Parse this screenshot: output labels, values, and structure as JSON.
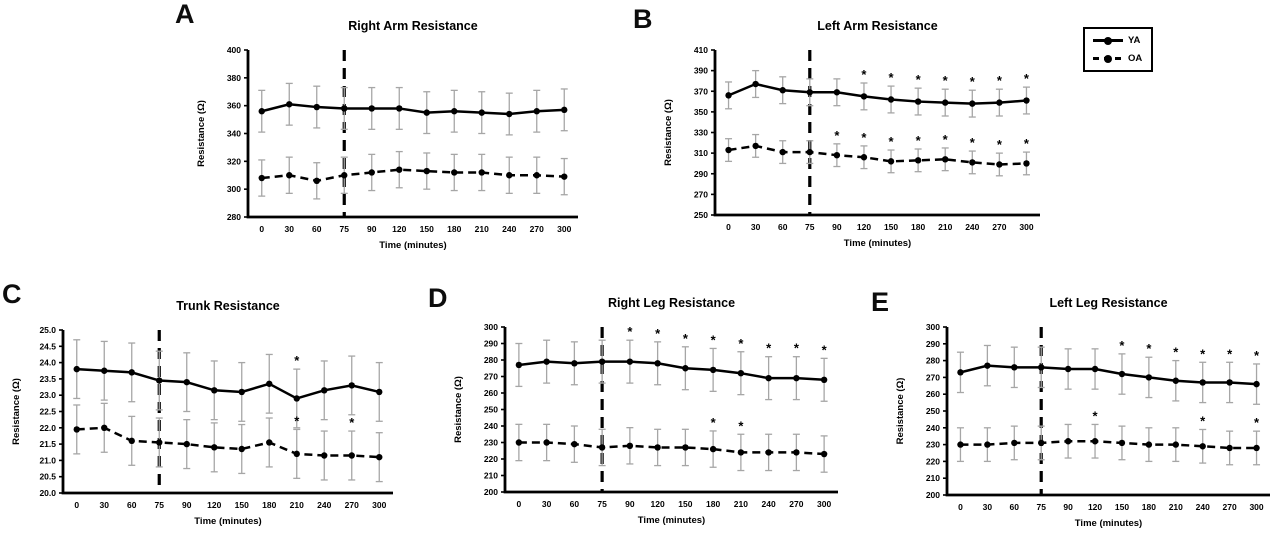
{
  "figure": {
    "background": "#ffffff"
  },
  "colors": {
    "foreground": "#000000",
    "error_bars": "#a6a6a6"
  },
  "legend": {
    "items": [
      {
        "label": "YA",
        "style": "solid"
      },
      {
        "label": "OA",
        "style": "dashed"
      }
    ]
  },
  "chart_data": [
    {
      "panel": "A",
      "type": "line",
      "title": "Right Arm Resistance",
      "xlabel": "Time (minutes)",
      "ylabel": "Resistance (Ω)",
      "categories": [
        "0",
        "30",
        "60",
        "75",
        "90",
        "120",
        "150",
        "180",
        "210",
        "240",
        "270",
        "300"
      ],
      "ylim": [
        280,
        400
      ],
      "ytick_step": 20,
      "ydecimals": 0,
      "grid": false,
      "vline_at": "75",
      "series": [
        {
          "name": "YA",
          "style": "solid",
          "values": [
            356,
            361,
            359,
            358,
            358,
            358,
            355,
            356,
            355,
            354,
            356,
            357
          ],
          "err": 15,
          "sig_at": []
        },
        {
          "name": "OA",
          "style": "dashed",
          "values": [
            308,
            310,
            306,
            310,
            312,
            314,
            313,
            312,
            312,
            310,
            310,
            309
          ],
          "err": 13,
          "sig_at": []
        }
      ]
    },
    {
      "panel": "B",
      "type": "line",
      "title": "Left Arm Resistance",
      "xlabel": "Time (minutes)",
      "ylabel": "Resistance (Ω)",
      "categories": [
        "0",
        "30",
        "60",
        "75",
        "90",
        "120",
        "150",
        "180",
        "210",
        "240",
        "270",
        "300"
      ],
      "ylim": [
        250,
        410
      ],
      "ytick_step": 20,
      "ydecimals": 0,
      "grid": false,
      "vline_at": "75",
      "series": [
        {
          "name": "YA",
          "style": "solid",
          "values": [
            366,
            377,
            371,
            369,
            369,
            365,
            362,
            360,
            359,
            358,
            359,
            361
          ],
          "err": 13,
          "sig_at": [
            "120",
            "150",
            "180",
            "210",
            "240",
            "270",
            "300"
          ]
        },
        {
          "name": "OA",
          "style": "dashed",
          "values": [
            313,
            317,
            311,
            311,
            308,
            306,
            302,
            303,
            304,
            301,
            299,
            300
          ],
          "err": 11,
          "sig_at": [
            "90",
            "120",
            "150",
            "180",
            "210",
            "240",
            "270",
            "300"
          ]
        }
      ]
    },
    {
      "panel": "C",
      "type": "line",
      "title": "Trunk Resistance",
      "xlabel": "Time (minutes)",
      "ylabel": "Resistance (Ω)",
      "categories": [
        "0",
        "30",
        "60",
        "75",
        "90",
        "120",
        "150",
        "180",
        "210",
        "240",
        "270",
        "300"
      ],
      "ylim": [
        20.0,
        25.0
      ],
      "ytick_step": 0.5,
      "ydecimals": 1,
      "grid": false,
      "vline_at": "75",
      "series": [
        {
          "name": "YA",
          "style": "solid",
          "values": [
            23.8,
            23.75,
            23.7,
            23.45,
            23.4,
            23.15,
            23.1,
            23.35,
            22.9,
            23.15,
            23.3,
            23.1
          ],
          "err": 0.9,
          "sig_at": [
            "210"
          ]
        },
        {
          "name": "OA",
          "style": "dashed",
          "values": [
            21.95,
            22.0,
            21.6,
            21.55,
            21.5,
            21.4,
            21.35,
            21.55,
            21.2,
            21.15,
            21.15,
            21.1
          ],
          "err": 0.75,
          "sig_at": [
            "210",
            "270"
          ]
        }
      ]
    },
    {
      "panel": "D",
      "type": "line",
      "title": "Right Leg Resistance",
      "xlabel": "Time (minutes)",
      "ylabel": "Resistance (Ω)",
      "categories": [
        "0",
        "30",
        "60",
        "75",
        "90",
        "120",
        "150",
        "180",
        "210",
        "240",
        "270",
        "300"
      ],
      "ylim": [
        200,
        300
      ],
      "ytick_step": 10,
      "ydecimals": 0,
      "grid": false,
      "vline_at": "75",
      "series": [
        {
          "name": "YA",
          "style": "solid",
          "values": [
            277,
            279,
            278,
            279,
            279,
            278,
            275,
            274,
            272,
            269,
            269,
            268
          ],
          "err": 13,
          "sig_at": [
            "90",
            "120",
            "150",
            "180",
            "210",
            "240",
            "270",
            "300"
          ]
        },
        {
          "name": "OA",
          "style": "dashed",
          "values": [
            230,
            230,
            229,
            227,
            228,
            227,
            227,
            226,
            224,
            224,
            224,
            223
          ],
          "err": 11,
          "sig_at": [
            "180",
            "210"
          ]
        }
      ]
    },
    {
      "panel": "E",
      "type": "line",
      "title": "Left Leg Resistance",
      "xlabel": "Time (minutes)",
      "ylabel": "Resistance (Ω)",
      "categories": [
        "0",
        "30",
        "60",
        "75",
        "90",
        "120",
        "150",
        "180",
        "210",
        "240",
        "270",
        "300"
      ],
      "ylim": [
        200,
        300
      ],
      "ytick_step": 10,
      "ydecimals": 0,
      "grid": false,
      "vline_at": "75",
      "series": [
        {
          "name": "YA",
          "style": "solid",
          "values": [
            273,
            277,
            276,
            276,
            275,
            275,
            272,
            270,
            268,
            267,
            267,
            266
          ],
          "err": 12,
          "sig_at": [
            "150",
            "180",
            "210",
            "240",
            "270",
            "300"
          ]
        },
        {
          "name": "OA",
          "style": "dashed",
          "values": [
            230,
            230,
            231,
            231,
            232,
            232,
            231,
            230,
            230,
            229,
            228,
            228
          ],
          "err": 10,
          "sig_at": [
            "120",
            "240",
            "300"
          ]
        }
      ]
    }
  ]
}
